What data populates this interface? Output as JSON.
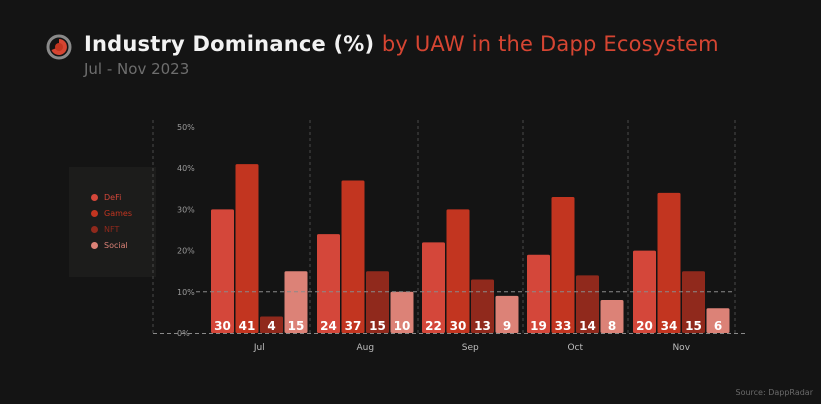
{
  "header": {
    "title_main": "Industry Dominance (%)",
    "title_accent": "by UAW in the Dapp Ecosystem",
    "subtitle": "Jul - Nov 2023",
    "logo_icon": "dappradar-logo-icon"
  },
  "source": "Source: DappRadar",
  "colors": {
    "DeFi": "#d4473a",
    "Games": "#c23520",
    "NFT": "#90291c",
    "Social": "#dc8277",
    "background": "#141414",
    "accent": "#d64532"
  },
  "chart_data": {
    "type": "bar",
    "categories": [
      "Jul",
      "Aug",
      "Sep",
      "Oct",
      "Nov"
    ],
    "series": [
      {
        "name": "DeFi",
        "values": [
          30,
          24,
          22,
          19,
          20
        ]
      },
      {
        "name": "Games",
        "values": [
          41,
          37,
          30,
          33,
          34
        ]
      },
      {
        "name": "NFT",
        "values": [
          4,
          15,
          13,
          14,
          15
        ]
      },
      {
        "name": "Social",
        "values": [
          15,
          10,
          9,
          8,
          6
        ]
      }
    ],
    "yticks": [
      "50%",
      "40%",
      "30%",
      "20%",
      "10%",
      "0%"
    ],
    "ylim": [
      0,
      50
    ],
    "title": "Industry Dominance (%) by UAW in the Dapp Ecosystem",
    "subtitle": "Jul - Nov 2023",
    "legend_position": "left",
    "grid": "vertical dashed separators between months; dashed line at 10%"
  }
}
